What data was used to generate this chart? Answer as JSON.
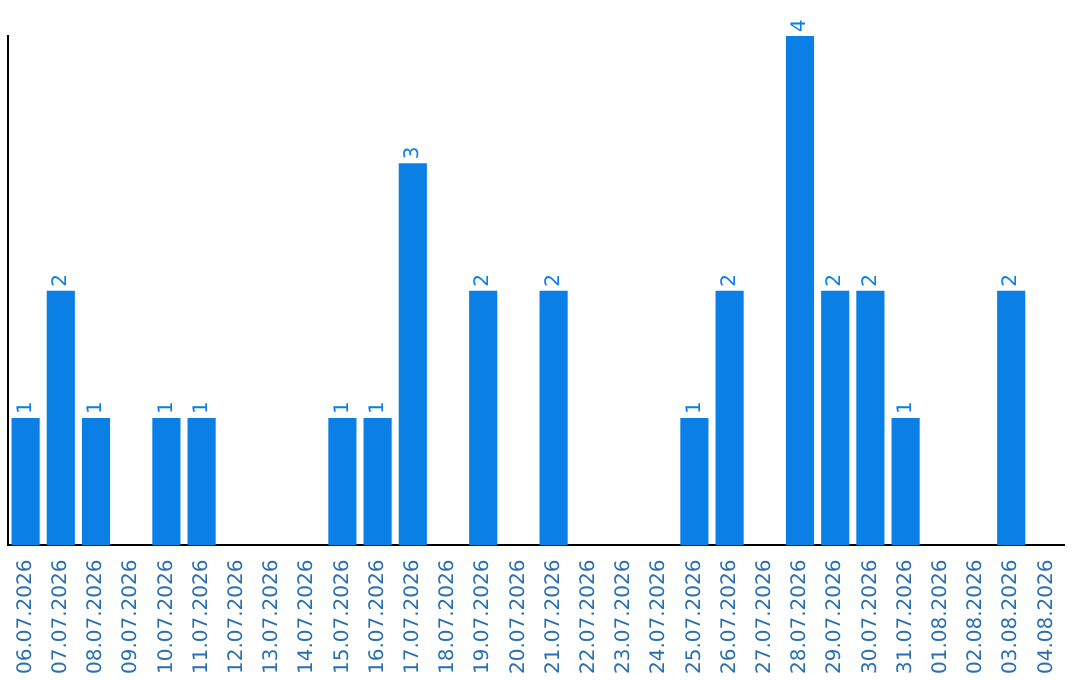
{
  "chart_data": {
    "type": "bar",
    "categories": [
      "06.07.2026",
      "07.07.2026",
      "08.07.2026",
      "09.07.2026",
      "10.07.2026",
      "11.07.2026",
      "12.07.2026",
      "13.07.2026",
      "14.07.2026",
      "15.07.2026",
      "16.07.2026",
      "17.07.2026",
      "18.07.2026",
      "19.07.2026",
      "20.07.2026",
      "21.07.2026",
      "22.07.2026",
      "23.07.2026",
      "24.07.2026",
      "25.07.2026",
      "26.07.2026",
      "27.07.2026",
      "28.07.2026",
      "29.07.2026",
      "30.07.2026",
      "31.07.2026",
      "01.08.2026",
      "02.08.2026",
      "03.08.2026",
      "04.08.2026"
    ],
    "values": [
      1,
      2,
      1,
      0,
      1,
      1,
      0,
      0,
      0,
      1,
      1,
      3,
      0,
      2,
      0,
      2,
      0,
      0,
      0,
      1,
      2,
      0,
      4,
      2,
      2,
      1,
      0,
      0,
      2,
      0
    ],
    "value_labels": [
      "1",
      "2",
      "1",
      null,
      "1",
      "1",
      null,
      null,
      null,
      "1",
      "1",
      "3",
      null,
      "2",
      null,
      "2",
      null,
      null,
      null,
      "1",
      "2",
      null,
      "4",
      "2",
      "2",
      "1",
      null,
      null,
      "2",
      null
    ],
    "color": "#0a7fe6",
    "grid": false,
    "legend": false,
    "tick_labels": "x"
  }
}
